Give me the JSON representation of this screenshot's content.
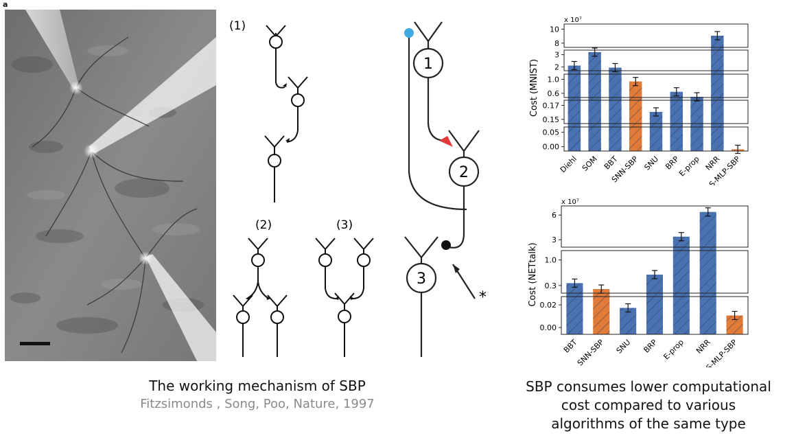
{
  "panel_label": "a",
  "left_caption": {
    "title": "The working mechanism of SBP",
    "citation": "Fitzsimonds , Song, Poo, Nature, 1997"
  },
  "right_caption": {
    "lines": [
      "SBP consumes lower computational",
      "cost compared to various",
      "algorithms of the same type"
    ]
  },
  "diagram_labels": {
    "label_1": "(1)",
    "label_2": "(2)",
    "label_3": "(3)",
    "neuron_1": "1",
    "neuron_2": "2",
    "neuron_3": "3",
    "asterisk": "*"
  },
  "colors": {
    "blue_bar": "#4a72b0",
    "orange_bar": "#e07b39",
    "dendrite_dot": "#3fa9e0",
    "synapse_red": "#e03a3a"
  },
  "chart_data": [
    {
      "type": "bar",
      "ylabel": "Cost (MNIST)",
      "multiplier_label": "x 10⁷",
      "categories": [
        "Diehl",
        "SOM",
        "BBT",
        "SNN-SBP",
        "SNU",
        "BRP",
        "E-prop",
        "NRR",
        "S-MLP-SBP"
      ],
      "values": [
        20000000,
        33000000,
        18000000,
        8800000,
        1600000,
        5700000,
        4200000,
        90000000,
        50000
      ],
      "bar_colors": [
        "blue",
        "blue",
        "blue",
        "orange",
        "blue",
        "blue",
        "blue",
        "blue",
        "orange"
      ],
      "broken_axis_segments": [
        {
          "ticks": [
            "10",
            "8"
          ]
        },
        {
          "ticks": [
            "3",
            "2"
          ]
        },
        {
          "ticks": [
            "1.0",
            "0.6"
          ]
        },
        {
          "ticks": [
            "0.17",
            "0.15"
          ]
        },
        {
          "ticks": [
            "0.05",
            "0.00"
          ]
        }
      ]
    },
    {
      "type": "bar",
      "ylabel": "Cost (NETtalk)",
      "multiplier_label": "x 10⁷",
      "categories": [
        "BBT",
        "SNN-SBP",
        "SNU",
        "BRP",
        "E-prop",
        "NRR",
        "S-MLP-SBP"
      ],
      "values": [
        4200000,
        2600000,
        210000,
        6500000,
        29000000,
        62000000,
        150000
      ],
      "bar_colors": [
        "blue",
        "orange",
        "blue",
        "blue",
        "blue",
        "blue",
        "orange"
      ],
      "broken_axis_segments": [
        {
          "ticks": [
            "6",
            "3"
          ]
        },
        {
          "ticks": [
            "1.0",
            "0.3"
          ]
        },
        {
          "ticks": [
            "0.02",
            "0.00"
          ]
        }
      ]
    }
  ]
}
